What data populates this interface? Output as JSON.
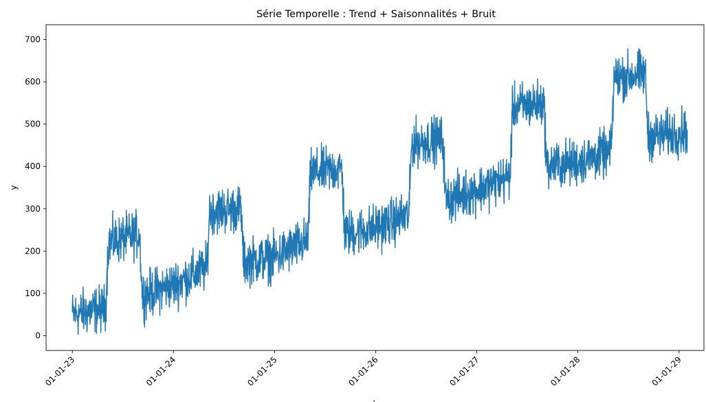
{
  "chart_data": {
    "type": "line",
    "title": "Série Temporelle : Trend + Saisonnalités + Bruit",
    "xlabel": "ds",
    "ylabel": "y",
    "x_ticks": [
      "01-01-23",
      "01-01-24",
      "01-01-25",
      "01-01-26",
      "01-01-27",
      "01-01-28",
      "01-01-29"
    ],
    "x_tick_dates": [
      "2023-01-01",
      "2024-01-01",
      "2025-01-01",
      "2026-01-01",
      "2027-01-01",
      "2028-01-01",
      "2029-01-01"
    ],
    "y_ticks": [
      0,
      100,
      200,
      300,
      400,
      500,
      600,
      700
    ],
    "xlim": [
      "2022-09-28",
      "2029-04-01"
    ],
    "ylim": [
      -35,
      735
    ],
    "grid": false,
    "line_color": "#1f77b4",
    "series": [
      {
        "x": [
          "2023-01-01",
          "2023-05-01",
          "2023-05-11",
          "2023-09-01",
          "2023-09-11",
          "2024-01-01",
          "2024-05-01",
          "2024-05-11",
          "2024-09-01",
          "2024-09-11",
          "2025-01-01",
          "2025-05-01",
          "2025-05-11",
          "2025-09-01",
          "2025-09-11",
          "2026-01-01",
          "2026-05-01",
          "2026-05-11",
          "2026-09-01",
          "2026-09-11",
          "2027-01-01",
          "2027-05-01",
          "2027-05-11",
          "2027-09-01",
          "2027-09-11",
          "2028-01-01",
          "2028-05-01",
          "2028-05-11",
          "2028-09-01",
          "2028-09-11",
          "2029-01-01",
          "2029-01-31"
        ],
        "y": [
          50,
          65,
          220,
          240,
          95,
          120,
          160,
          295,
          300,
          175,
          185,
          225,
          385,
          395,
          240,
          255,
          285,
          455,
          465,
          320,
          345,
          375,
          540,
          550,
          400,
          410,
          435,
          610,
          620,
          470,
          480,
          485
        ],
        "noise": 27
      }
    ]
  }
}
